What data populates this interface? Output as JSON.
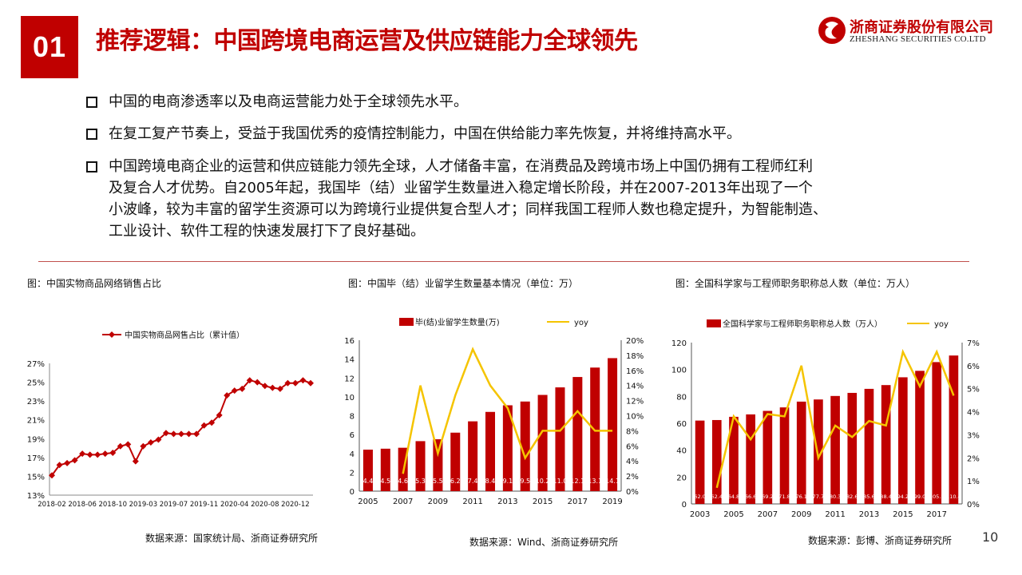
{
  "header": {
    "badge": "01",
    "title": "推荐逻辑：中国跨境电商运营及供应链能力全球领先",
    "logo_cn": "浙商证券股份有限公司",
    "logo_en": "ZHESHANG SECURITIES CO.LTD"
  },
  "bullets": [
    "中国的电商渗透率以及电商运营能力处于全球领先水平。",
    "在复工复产节奏上，受益于我国优秀的疫情控制能力，中国在供给能力率先恢复，并将维持高水平。",
    "中国跨境电商企业的运营和供应链能力领先全球，人才储备丰富，在消费品及跨境市场上中国仍拥有工程师红利及复合人才优势。自2005年起，我国毕（结）业留学生数量进入稳定增长阶段，并在2007-2013年出现了一个小波峰，较为丰富的留学生资源可以为跨境行业提供复合型人才；同样我国工程师人数也稳定提升，为智能制造、工业设计、软件工程的快速发展打下了良好基础。"
  ],
  "bullet_lines": [
    [
      "中国的电商渗透率以及电商运营能力处于全球领先水平。"
    ],
    [
      "在复工复产节奏上，受益于我国优秀的疫情控制能力，中国在供给能力率先恢复，并将维持高水平。"
    ],
    [
      "中国跨境电商企业的运营和供应链能力领先全球，人才储备丰富，在消费品及跨境市场上中国仍拥有工程师红利",
      "及复合人才优势。自2005年起，我国毕（结）业留学生数量进入稳定增长阶段，并在2007-2013年出现了一个",
      "小波峰，较为丰富的留学生资源可以为跨境行业提供复合型人才；同样我国工程师人数也稳定提升，为智能制造、",
      "工业设计、软件工程的快速发展打下了良好基础。"
    ]
  ],
  "captions": {
    "chart1": "图：中国实物商品网络销售占比",
    "chart2": "图：中国毕（结）业留学生数量基本情况（单位：万）",
    "chart3": "图：全国科学家与工程师职务职称总人数（单位：万人）"
  },
  "sources": {
    "chart1": "数据来源：国家统计局、浙商证券研究所",
    "chart2": "数据来源：Wind、浙商证券研究所",
    "chart3": "数据来源：彭博、浙商证券研究所"
  },
  "page_number": "10",
  "colors": {
    "brand": "#c00000",
    "bar": "#c00000",
    "line": "#f5c400",
    "divider": "#c0504d"
  },
  "chart_data": [
    {
      "type": "line",
      "legend": "中国实物商品网售占比（累计值）",
      "x": [
        "2018-02",
        "2018-03",
        "2018-04",
        "2018-05",
        "2018-06",
        "2018-07",
        "2018-08",
        "2018-09",
        "2018-10",
        "2018-11",
        "2018-12",
        "2019-02",
        "2019-03",
        "2019-04",
        "2019-05",
        "2019-06",
        "2019-07",
        "2019-08",
        "2019-09",
        "2019-10",
        "2019-11",
        "2019-12",
        "2020-02",
        "2020-03",
        "2020-04",
        "2020-05",
        "2020-06",
        "2020-07",
        "2020-08",
        "2020-09",
        "2020-10",
        "2020-11",
        "2020-12",
        "2021-02",
        "2021-03"
      ],
      "values": [
        15.1,
        16.2,
        16.4,
        16.7,
        17.4,
        17.3,
        17.3,
        17.4,
        17.5,
        18.2,
        18.4,
        16.6,
        18.2,
        18.6,
        18.9,
        19.6,
        19.5,
        19.5,
        19.5,
        19.5,
        20.4,
        20.7,
        21.5,
        23.6,
        24.1,
        24.3,
        25.2,
        25.0,
        24.6,
        24.4,
        24.3,
        24.9,
        24.9,
        25.2,
        24.9
      ],
      "x_ticks": [
        "2018-02",
        "2018-06",
        "2018-10",
        "2019-03",
        "2019-07",
        "2019-11",
        "2020-04",
        "2020-08",
        "2020-12"
      ],
      "y_ticks": [
        "27%",
        "25%",
        "23%",
        "21%",
        "19%",
        "17%",
        "15%",
        "13%"
      ],
      "ylim": [
        13,
        27
      ]
    },
    {
      "type": "bar+line",
      "legend_bar": "毕(结)业留学生数量(万)",
      "legend_line": "yoy",
      "categories": [
        "2005",
        "2006",
        "2007",
        "2008",
        "2009",
        "2010",
        "2011",
        "2012",
        "2013",
        "2014",
        "2015",
        "2016",
        "2017",
        "2018",
        "2019"
      ],
      "bar_values": [
        4.4,
        4.5,
        4.6,
        5.3,
        5.5,
        6.2,
        7.4,
        8.4,
        9.1,
        9.5,
        10.2,
        11.0,
        12.1,
        13.1,
        14.1
      ],
      "bar_labels": [
        "4.4",
        "4.5",
        "4.6",
        "5.3",
        "5.5",
        "6.2",
        "7.4",
        "8.4",
        "9.1",
        "9.5",
        "10.2",
        "11.0",
        "12.1",
        "13.1",
        "14.1"
      ],
      "yoy_pct": [
        null,
        null,
        2.3,
        14.0,
        5.0,
        12.7,
        18.8,
        14.0,
        11.0,
        4.4,
        8.0,
        8.0,
        10.6,
        8.0,
        8.0
      ],
      "x_ticks": [
        "2005",
        "2007",
        "2009",
        "2011",
        "2013",
        "2015",
        "2017",
        "2019"
      ],
      "y_left_ticks": [
        "16",
        "14",
        "12",
        "10",
        "8",
        "6",
        "4",
        "2",
        "0"
      ],
      "y_right_ticks": [
        "20%",
        "18%",
        "16%",
        "14%",
        "12%",
        "10%",
        "8%",
        "6%",
        "4%",
        "2%",
        "0%"
      ],
      "ylim_left": [
        0,
        16
      ],
      "ylim_right": [
        0,
        20
      ]
    },
    {
      "type": "bar+line",
      "legend_bar": "全国科学家与工程师职务职称总人数（万人）",
      "legend_line": "yoy",
      "categories": [
        "2003",
        "2004",
        "2005",
        "2006",
        "2007",
        "2008",
        "2009",
        "2010",
        "2011",
        "2012",
        "2013",
        "2014",
        "2015",
        "2016",
        "2017",
        "2018"
      ],
      "bar_values": [
        62.0,
        62.4,
        64.8,
        66.6,
        69.2,
        71.8,
        76.1,
        77.7,
        80.3,
        82.6,
        85.6,
        88.4,
        94.2,
        99.0,
        105.5,
        110.4
      ],
      "bar_labels": [
        "62.0",
        "62.4",
        "64.8",
        "66.6",
        "69.2",
        "71.8",
        "76.1",
        "77.7",
        "80.3",
        "82.6",
        "85.6",
        "88.4",
        "94.2",
        "99.0",
        "105.5",
        "110.4"
      ],
      "yoy_pct": [
        null,
        0.7,
        3.8,
        2.8,
        3.9,
        3.8,
        6.0,
        2.0,
        3.4,
        2.9,
        3.6,
        3.4,
        6.6,
        5.1,
        6.6,
        4.7
      ],
      "x_ticks": [
        "2003",
        "2005",
        "2007",
        "2009",
        "2011",
        "2013",
        "2015",
        "2017"
      ],
      "y_left_ticks": [
        "120",
        "100",
        "80",
        "60",
        "40",
        "20",
        "0"
      ],
      "y_right_ticks": [
        "7%",
        "6%",
        "5%",
        "4%",
        "3%",
        "2%",
        "1%",
        "0%"
      ],
      "ylim_left": [
        0,
        120
      ],
      "ylim_right": [
        0,
        7
      ]
    }
  ]
}
